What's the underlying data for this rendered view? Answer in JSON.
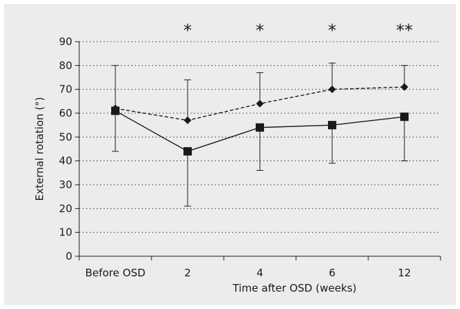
{
  "chart_data": {
    "type": "line",
    "xlabel": "Time after OSD (weeks)",
    "ylabel": "External rotation (°)",
    "categories": [
      "Before OSD",
      "2",
      "4",
      "6",
      "12"
    ],
    "yticks": [
      0,
      10,
      20,
      30,
      40,
      50,
      60,
      70,
      80,
      90
    ],
    "ylim": [
      0,
      90
    ],
    "grid": "horizontal dotted",
    "significance": [
      "",
      "*",
      "*",
      "*",
      "**"
    ],
    "series": [
      {
        "marker": "diamond",
        "line_style": "dashed",
        "color": "#1a1a1a",
        "values": [
          62,
          57,
          64,
          70,
          71
        ],
        "error_upper": [
          80,
          74,
          77,
          81,
          80
        ]
      },
      {
        "marker": "square",
        "line_style": "solid",
        "color": "#1a1a1a",
        "values": [
          61,
          44,
          54,
          55,
          58.5
        ],
        "error_lower": [
          44,
          21,
          36,
          39,
          40
        ]
      }
    ]
  }
}
